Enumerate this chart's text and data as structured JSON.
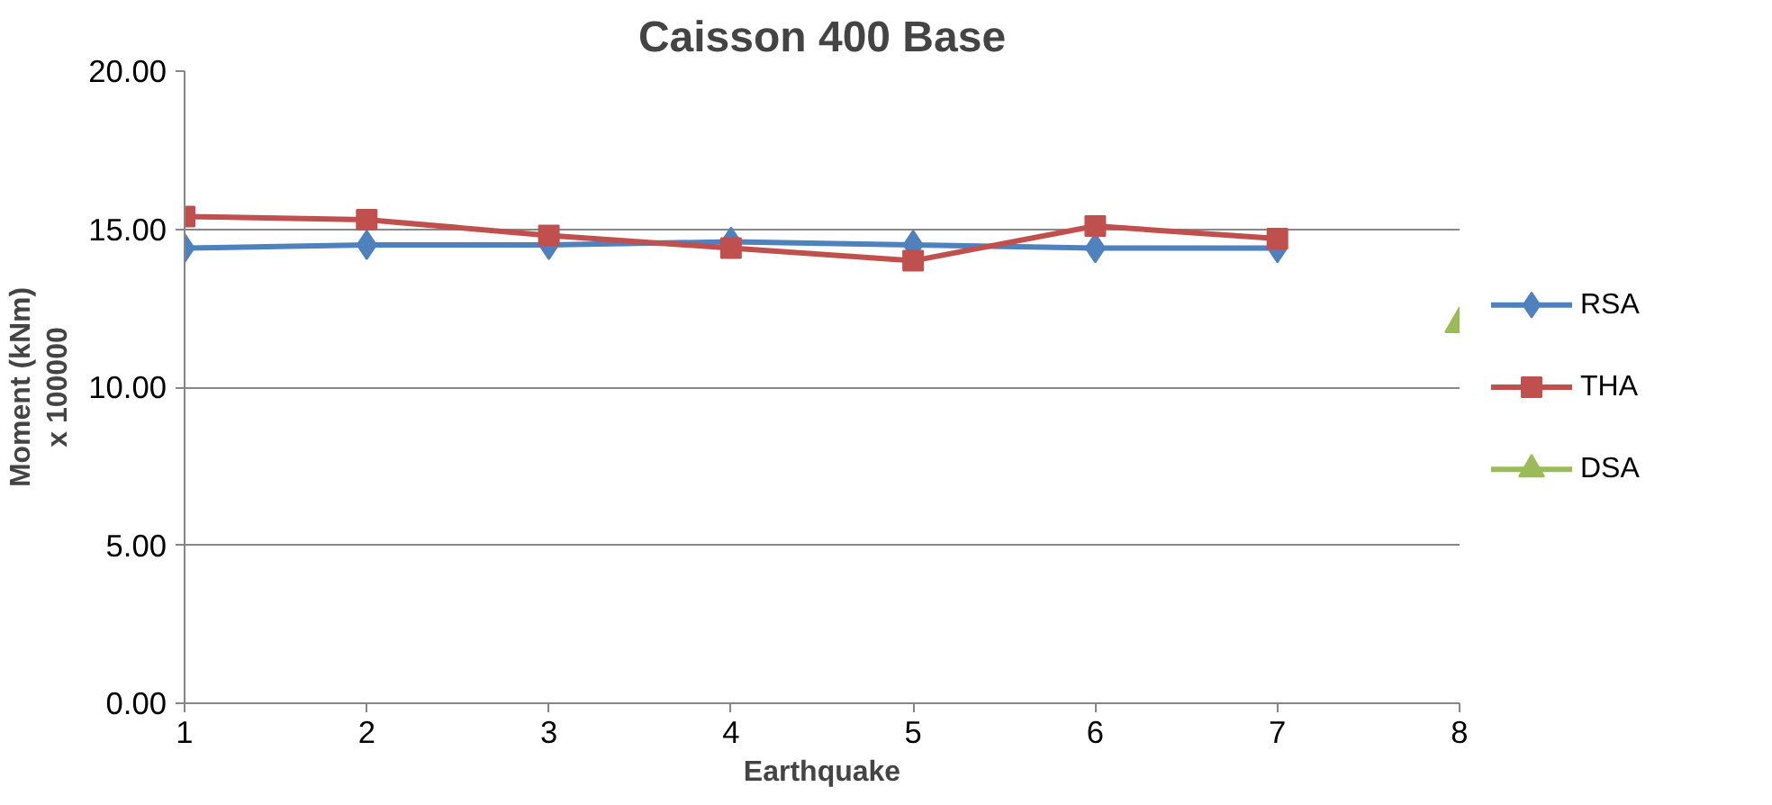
{
  "chart_data": {
    "type": "line",
    "title": "Caisson 400 Base",
    "xlabel": "Earthquake",
    "ylabel": "Moment (kNm)\nx 100000",
    "x": [
      1,
      2,
      3,
      4,
      5,
      6,
      7
    ],
    "xlim": [
      1,
      8
    ],
    "xticks": [
      1,
      2,
      3,
      4,
      5,
      6,
      7,
      8
    ],
    "ylim": [
      0,
      20
    ],
    "yticks": [
      {
        "value": 0,
        "label": "0.00"
      },
      {
        "value": 5,
        "label": "5.00"
      },
      {
        "value": 10,
        "label": "10.00"
      },
      {
        "value": 15,
        "label": "15.00"
      },
      {
        "value": 20,
        "label": "20.00"
      }
    ],
    "grid": "y",
    "legend": "right",
    "series": [
      {
        "name": "RSA",
        "color": "#4f81bd",
        "marker": "diamond",
        "values": [
          14.4,
          14.5,
          14.5,
          14.6,
          14.5,
          14.4,
          14.4
        ]
      },
      {
        "name": "THA",
        "color": "#c0504d",
        "marker": "square",
        "values": [
          15.4,
          15.3,
          14.8,
          14.4,
          14.0,
          15.1,
          14.7
        ]
      },
      {
        "name": "DSA",
        "color": "#9bbb59",
        "marker": "triangle",
        "x": [
          8
        ],
        "values": [
          12.0
        ]
      }
    ]
  }
}
